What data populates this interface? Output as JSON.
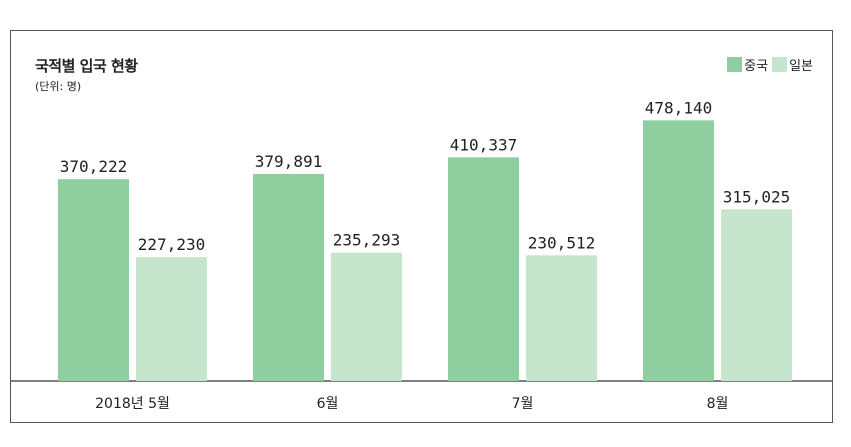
{
  "title": "국적별 입국 현황",
  "unit": "(단위: 명)",
  "colors": {
    "china": "#8fce9f",
    "japan": "#c6e5cd",
    "axis": "#333333"
  },
  "chart_data": {
    "type": "bar",
    "title": "국적별 입국 현황",
    "unit": "(단위: 명)",
    "categories": [
      "2018년 5월",
      "6월",
      "7월",
      "8월"
    ],
    "series": [
      {
        "name": "중국",
        "values": [
          370222,
          379891,
          410337,
          478140
        ],
        "labels": [
          "370,222",
          "379,891",
          "410,337",
          "478,140"
        ]
      },
      {
        "name": "일본",
        "values": [
          227230,
          235293,
          230512,
          315025
        ],
        "labels": [
          "227,230",
          "235,293",
          "230,512",
          "315,025"
        ]
      }
    ],
    "ylim": [
      0,
      510000
    ],
    "grid": false,
    "legend_position": "top-right",
    "xlabel": "",
    "ylabel": ""
  }
}
